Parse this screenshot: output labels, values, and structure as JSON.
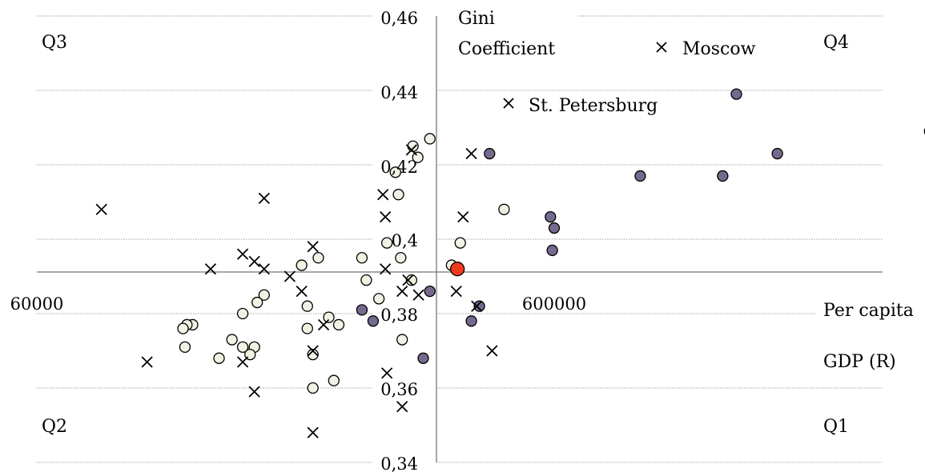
{
  "chart_data": {
    "type": "scatter",
    "x_scale": "log",
    "xlim": [
      60000,
      6000000
    ],
    "ylim": [
      0.34,
      0.46
    ],
    "x_cross": 390000,
    "y_cross": 0.392,
    "x_ticks": [
      "60000",
      "600000"
    ],
    "y_ticks": [
      "0,34",
      "0,36",
      "0,38",
      "0,4",
      "0,42",
      "0,44",
      "0,46"
    ],
    "xlabel": [
      "Per capita",
      "GDP (R)"
    ],
    "ylabel": [
      "Gini",
      "Coefficient"
    ],
    "quadrants": {
      "q1": "Q1",
      "q2": "Q2",
      "q3": "Q3",
      "q4": "Q4"
    },
    "legend": [
      "Moscow",
      "St. Petersburg"
    ],
    "gridlines": true,
    "colors": {
      "q4_point": "#756a8e",
      "other_point": "#f2f2e4",
      "highlight": "#f03a1e",
      "marker_x": "#000000"
    },
    "series": [
      {
        "marker": "circle-purple",
        "points": [
          [
            450000,
            0.423
          ],
          [
            590000,
            0.406
          ],
          [
            600000,
            0.403
          ],
          [
            595000,
            0.397
          ],
          [
            880000,
            0.417
          ],
          [
            1270000,
            0.417
          ],
          [
            1620000,
            0.423
          ],
          [
            1350000,
            0.439
          ],
          [
            3190000,
            0.429
          ],
          [
            345000,
            0.386
          ],
          [
            430000,
            0.382
          ],
          [
            415000,
            0.378
          ],
          [
            335000,
            0.368
          ],
          [
            255000,
            0.381
          ],
          [
            268000,
            0.378
          ]
        ]
      },
      {
        "marker": "circle-light",
        "points": [
          [
            345000,
            0.427
          ],
          [
            320000,
            0.425
          ],
          [
            327000,
            0.422
          ],
          [
            296000,
            0.418
          ],
          [
            300000,
            0.412
          ],
          [
            285000,
            0.399
          ],
          [
            395000,
            0.399
          ],
          [
            380000,
            0.393
          ],
          [
            480000,
            0.408
          ],
          [
            303000,
            0.395
          ],
          [
            255000,
            0.395
          ],
          [
            210000,
            0.395
          ],
          [
            195000,
            0.393
          ],
          [
            260000,
            0.389
          ],
          [
            318000,
            0.389
          ],
          [
            275000,
            0.384
          ],
          [
            165000,
            0.385
          ],
          [
            160000,
            0.383
          ],
          [
            150000,
            0.38
          ],
          [
            200000,
            0.382
          ],
          [
            220000,
            0.379
          ],
          [
            200000,
            0.376
          ],
          [
            230000,
            0.377
          ],
          [
            120000,
            0.377
          ],
          [
            117000,
            0.377
          ],
          [
            115000,
            0.376
          ],
          [
            116000,
            0.371
          ],
          [
            135000,
            0.368
          ],
          [
            143000,
            0.373
          ],
          [
            150000,
            0.371
          ],
          [
            158000,
            0.371
          ],
          [
            155000,
            0.369
          ],
          [
            205000,
            0.369
          ],
          [
            205000,
            0.36
          ],
          [
            225000,
            0.362
          ],
          [
            305000,
            0.373
          ]
        ]
      },
      {
        "marker": "cross",
        "points": [
          [
            318000,
            0.424
          ],
          [
            415000,
            0.423
          ],
          [
            280000,
            0.412
          ],
          [
            283000,
            0.406
          ],
          [
            400000,
            0.406
          ],
          [
            80000,
            0.408
          ],
          [
            165000,
            0.411
          ],
          [
            130000,
            0.392
          ],
          [
            150000,
            0.396
          ],
          [
            158000,
            0.394
          ],
          [
            165000,
            0.392
          ],
          [
            205000,
            0.398
          ],
          [
            185000,
            0.39
          ],
          [
            195000,
            0.386
          ],
          [
            283000,
            0.392
          ],
          [
            313000,
            0.389
          ],
          [
            305000,
            0.386
          ],
          [
            328000,
            0.385
          ],
          [
            388000,
            0.386
          ],
          [
            425000,
            0.382
          ],
          [
            215000,
            0.377
          ],
          [
            205000,
            0.37
          ],
          [
            150000,
            0.367
          ],
          [
            98000,
            0.367
          ],
          [
            158000,
            0.359
          ],
          [
            285000,
            0.364
          ],
          [
            305000,
            0.355
          ],
          [
            205000,
            0.348
          ],
          [
            455000,
            0.37
          ]
        ]
      },
      {
        "marker": "circle-red",
        "points": [
          [
            390000,
            0.392
          ]
        ]
      }
    ]
  }
}
